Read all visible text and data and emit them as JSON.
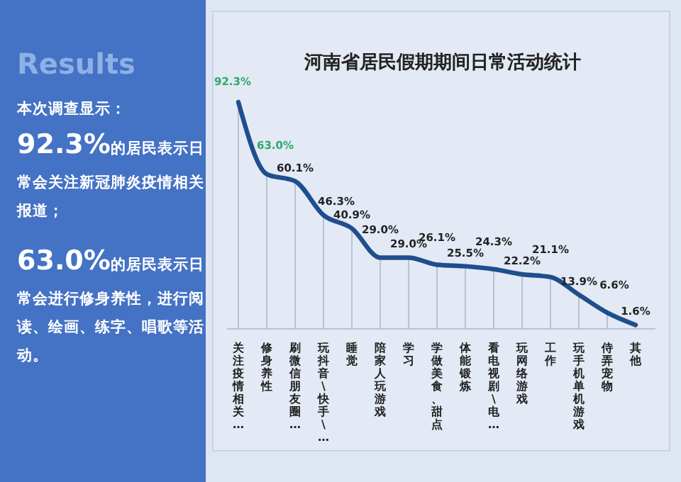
{
  "chart_data": {
    "type": "line",
    "title": "河南省居民假期期间日常活动统计",
    "categories": [
      "关注疫情相关…",
      "修身养性",
      "刷微信朋友圈…",
      "玩抖音\\快手\\…",
      "睡觉",
      "陪家人玩游戏",
      "学习",
      "学做美食、甜点",
      "体能锻炼",
      "看电视剧\\电…",
      "玩网络游戏",
      "工作",
      "玩手机单机游戏",
      "侍弄宠物",
      "其他"
    ],
    "series": [
      {
        "color": "#1f4e8c",
        "values": [
          92.3,
          63.0,
          60.1,
          46.3,
          40.9,
          29.0,
          29.0,
          26.1,
          25.5,
          24.3,
          22.2,
          21.1,
          13.9,
          6.6,
          1.6
        ],
        "value_labels": [
          "92.3%",
          "63.0%",
          "60.1%",
          "46.3%",
          "40.9%",
          "29.0%",
          "29.0%",
          "26.1%",
          "25.5%",
          "24.3%",
          "22.2%",
          "21.1%",
          "13.9%",
          "6.6%",
          "1.6%"
        ]
      }
    ],
    "tick_labels": "x",
    "grid": "x",
    "marker": "none",
    "line_style": "solid",
    "annotations": [
      "Results",
      "本次调查显示：",
      "92.3%的居民表示日常会关注新冠肺炎疫情相关报道；",
      "63.0%的居民表示日常会进行修身养性，进行阅读、绘画、练字、唱歌等活动。"
    ]
  }
}
